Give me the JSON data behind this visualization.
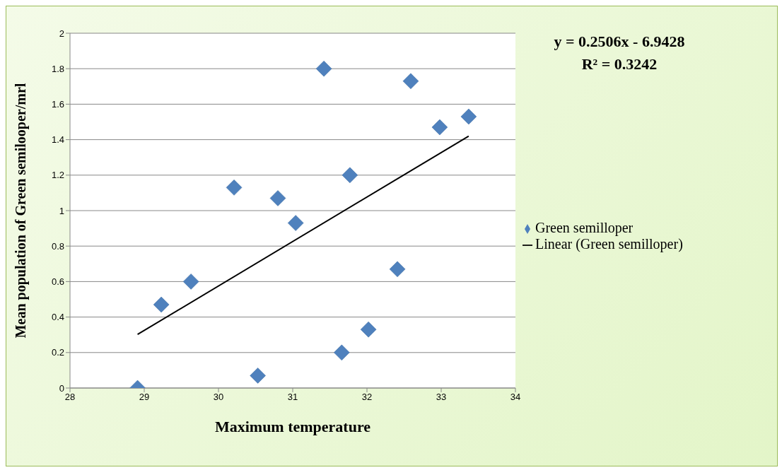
{
  "chart_data": {
    "type": "scatter",
    "xlabel": "Maximum  temperature",
    "ylabel": "Mean population of Green semilooper/mrl",
    "xlim": [
      28,
      34
    ],
    "xticks": [
      28,
      29,
      30,
      31,
      32,
      33,
      34
    ],
    "ylim": [
      0,
      2
    ],
    "yticks": [
      0,
      0.2,
      0.4,
      0.6,
      0.8,
      1,
      1.2,
      1.4,
      1.6,
      1.8,
      2
    ],
    "grid": "y",
    "legend": "right",
    "annotations": [
      "y = 0.2506x - 6.9428",
      "R² = 0.3242"
    ],
    "series": [
      {
        "name": "Green semilloper",
        "marker": "diamond",
        "color": "#4f81bd",
        "x": [
          28.91,
          29.23,
          29.63,
          30.21,
          30.53,
          30.8,
          31.04,
          31.42,
          31.66,
          31.77,
          32.02,
          32.41,
          32.59,
          32.98,
          33.37
        ],
        "values": [
          0,
          0.47,
          0.6,
          1.13,
          0.07,
          1.07,
          0.93,
          1.8,
          0.2,
          1.2,
          0.33,
          0.67,
          1.73,
          1.47,
          1.53
        ]
      },
      {
        "name": "Linear (Green semilloper)",
        "type": "line",
        "marker": "none",
        "color": "#000000",
        "x": [
          28.91,
          33.37
        ],
        "values": [
          0.302,
          1.42
        ]
      }
    ]
  }
}
